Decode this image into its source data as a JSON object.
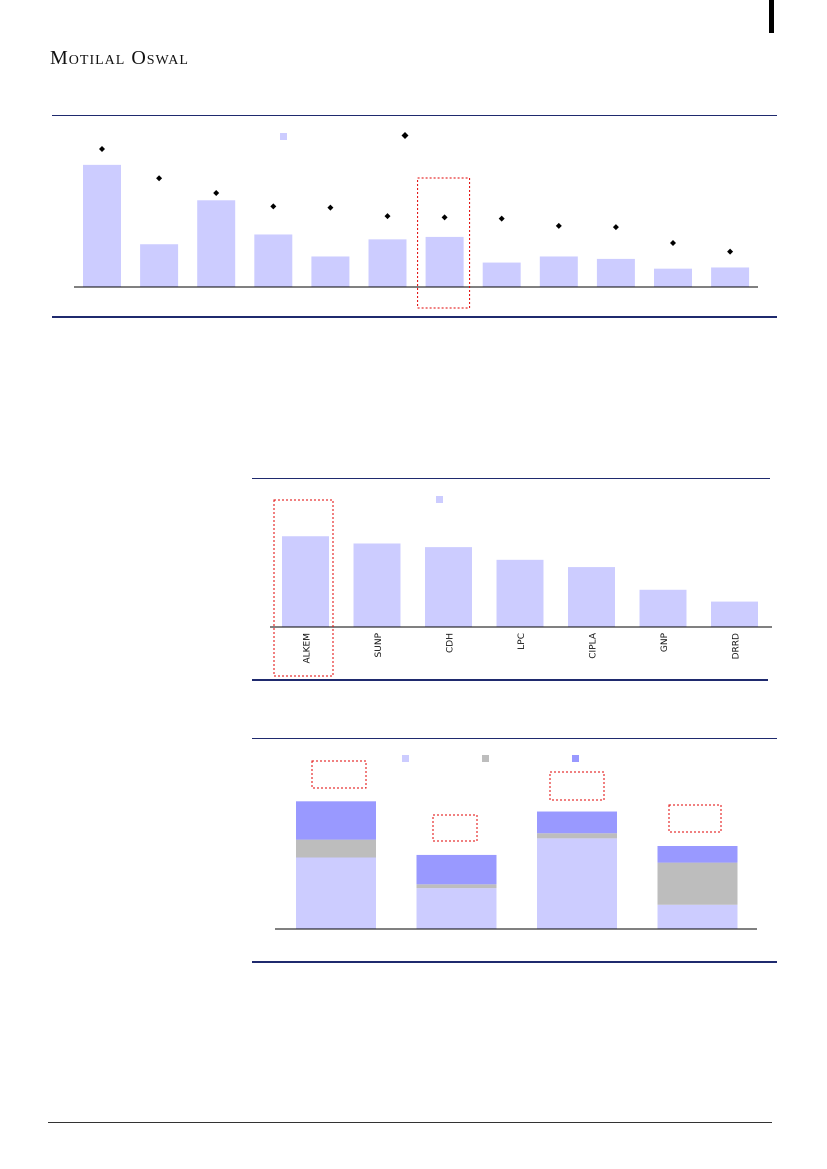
{
  "header": {
    "brand": "Motilal Oswal"
  },
  "colors": {
    "bar": "#ccccff",
    "bar_medium": "#bdbdbd",
    "bar_dark": "#9999ff",
    "marker": "#000000",
    "rule": "#1f2a6e",
    "highlight_box": "#e00000"
  },
  "chart_data": [
    {
      "type": "bar",
      "legend_markers": [
        "square",
        "diamond"
      ],
      "categories": [
        "",
        "",
        "",
        "",
        "",
        "",
        "",
        "",
        "",
        "",
        "",
        ""
      ],
      "series": [
        {
          "kind": "bar",
          "values": [
            100,
            35,
            71,
            43,
            25,
            39,
            41,
            20,
            25,
            23,
            15,
            16
          ]
        },
        {
          "kind": "marker",
          "values": [
            113,
            89,
            77,
            66,
            65,
            58,
            57,
            56,
            50,
            49,
            36,
            29
          ]
        }
      ],
      "ylim": [
        0,
        140
      ],
      "highlight_index": 6
    },
    {
      "type": "bar",
      "legend_markers": [
        "square"
      ],
      "categories": [
        "ALKEM",
        "SUNP",
        "CDH",
        "LPC",
        "CIPLA",
        "GNP",
        "DRRD"
      ],
      "values": [
        100,
        92,
        88,
        74,
        66,
        41,
        28
      ],
      "ylim": [
        0,
        130
      ],
      "highlight_index": 0
    },
    {
      "type": "bar",
      "stacked": true,
      "legend_markers": [
        "square",
        "square",
        "square"
      ],
      "categories": [
        "",
        "",
        "",
        ""
      ],
      "series": [
        {
          "values": [
            56,
            32,
            71,
            19
          ]
        },
        {
          "values": [
            14,
            3,
            4,
            33
          ]
        },
        {
          "values": [
            30,
            23,
            17,
            13
          ]
        }
      ],
      "ylim": [
        0,
        130
      ],
      "annotation_boxes": 4
    }
  ]
}
